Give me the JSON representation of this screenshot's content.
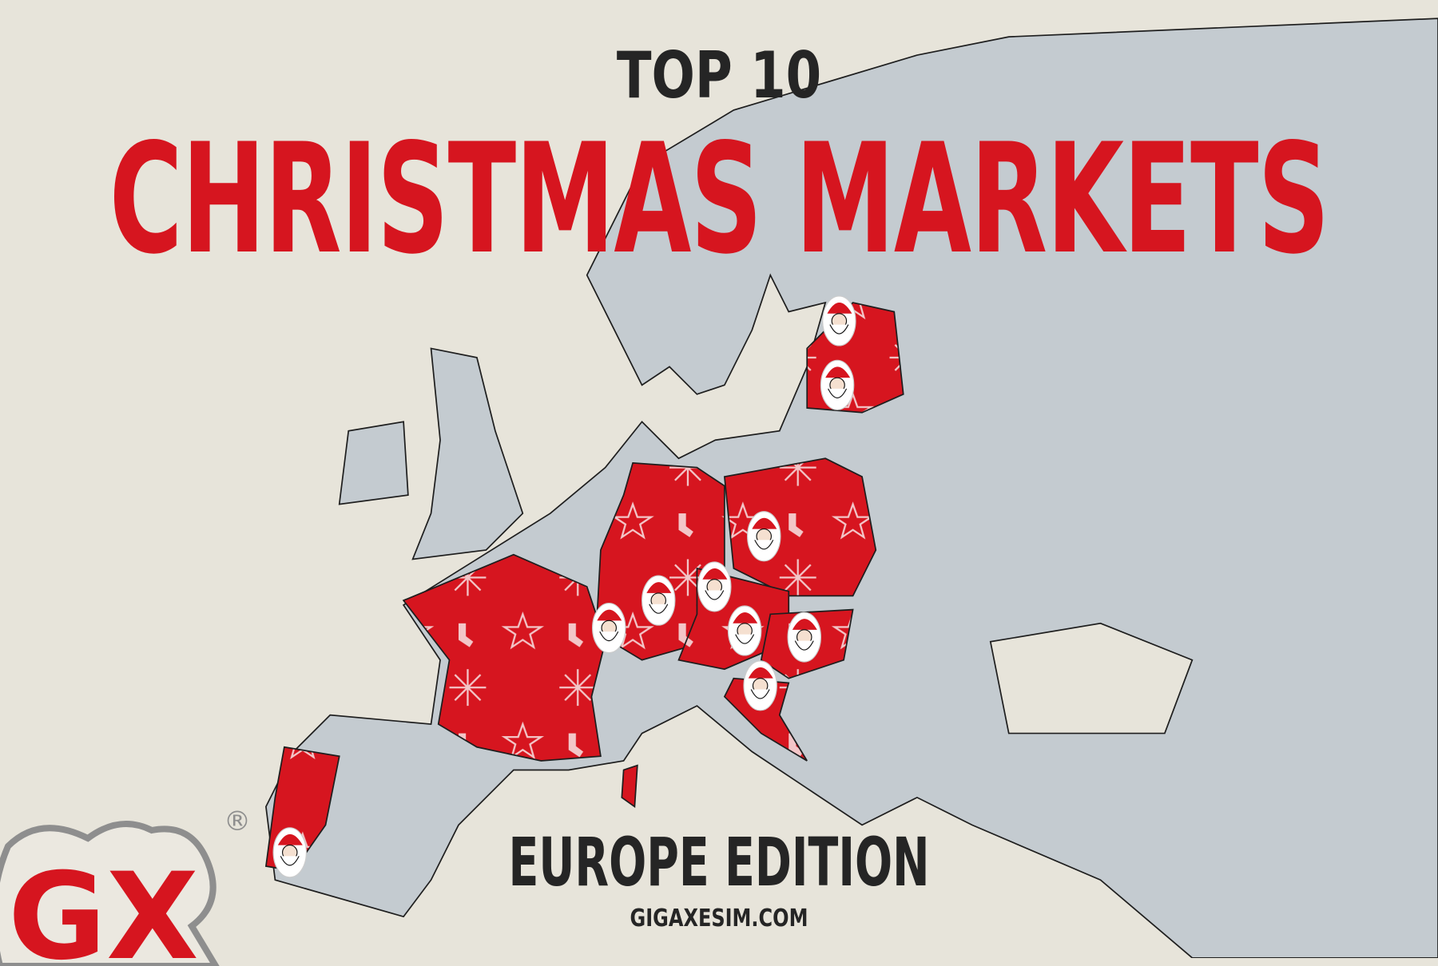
{
  "header": {
    "top_label": "TOP 10",
    "title": "CHRISTMAS MARKETS"
  },
  "footer": {
    "edition": "EUROPE EDITION",
    "website": "GIGAXESIM.COM"
  },
  "logo": {
    "text": "GX",
    "registered": "®"
  },
  "colors": {
    "accent": "#d6151f",
    "land": "#c4cbd0",
    "paper": "#e7e4da",
    "text": "#252525",
    "logo_outline": "#8e8e8e"
  },
  "map": {
    "marker_icon": "santa-icon",
    "marker_count": 10,
    "pattern_icons": [
      "snowflake-icon",
      "star-icon",
      "stocking-icon"
    ]
  }
}
